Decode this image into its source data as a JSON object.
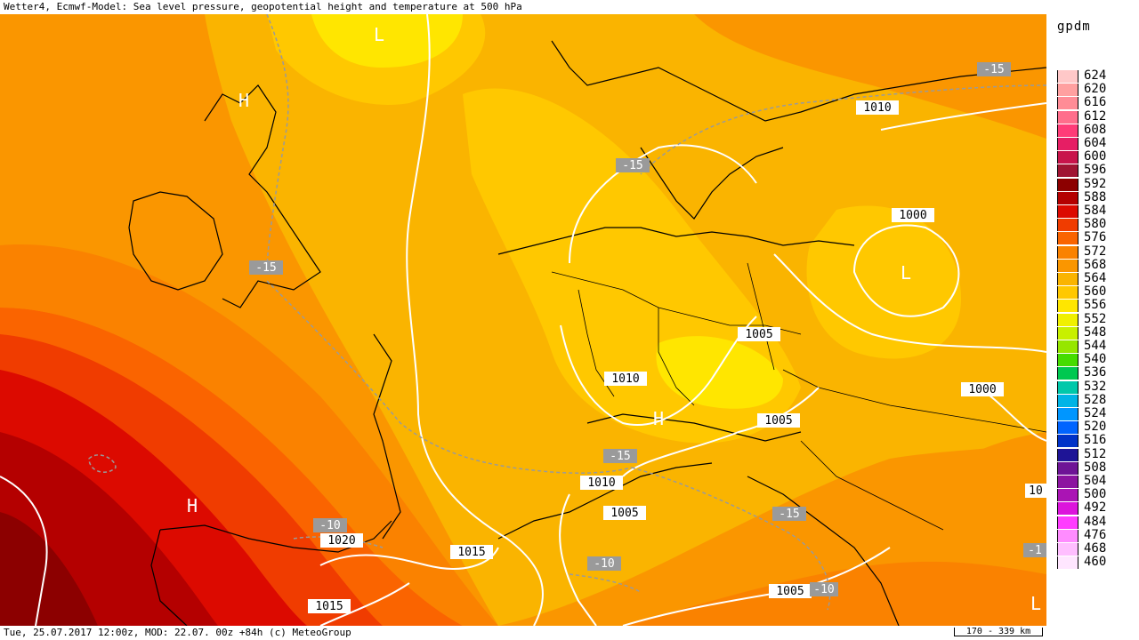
{
  "title": "Wetter4, Ecmwf-Model: Sea level pressure, geopotential height and temperature at 500 hPa",
  "footer": "Tue, 25.07.2017 12:00z, MOD: 22.07. 00z +84h (c) MeteoGroup",
  "scale_label": "170 - 339 km",
  "legend": {
    "unit": "gpdm",
    "items": [
      {
        "label": "624",
        "color": "#ffc8c8"
      },
      {
        "label": "620",
        "color": "#ffa0a0"
      },
      {
        "label": "616",
        "color": "#ff8c96"
      },
      {
        "label": "612",
        "color": "#ff6e8c"
      },
      {
        "label": "608",
        "color": "#ff3c78"
      },
      {
        "label": "604",
        "color": "#e61e64"
      },
      {
        "label": "600",
        "color": "#c8144b"
      },
      {
        "label": "596",
        "color": "#a01432"
      },
      {
        "label": "592",
        "color": "#8c0000"
      },
      {
        "label": "588",
        "color": "#b40000"
      },
      {
        "label": "584",
        "color": "#dc0a00"
      },
      {
        "label": "580",
        "color": "#f03c00"
      },
      {
        "label": "576",
        "color": "#fa6400"
      },
      {
        "label": "572",
        "color": "#fa8200"
      },
      {
        "label": "568",
        "color": "#fa9600"
      },
      {
        "label": "564",
        "color": "#fab400"
      },
      {
        "label": "560",
        "color": "#ffc800"
      },
      {
        "label": "556",
        "color": "#ffe600"
      },
      {
        "label": "552",
        "color": "#f0f000"
      },
      {
        "label": "548",
        "color": "#c8f000"
      },
      {
        "label": "544",
        "color": "#96e600"
      },
      {
        "label": "540",
        "color": "#46dc00"
      },
      {
        "label": "536",
        "color": "#00c850"
      },
      {
        "label": "532",
        "color": "#00c8aa"
      },
      {
        "label": "528",
        "color": "#00b4e6"
      },
      {
        "label": "524",
        "color": "#0096ff"
      },
      {
        "label": "520",
        "color": "#0064ff"
      },
      {
        "label": "516",
        "color": "#0032c8"
      },
      {
        "label": "512",
        "color": "#1e1496"
      },
      {
        "label": "508",
        "color": "#6e1496"
      },
      {
        "label": "504",
        "color": "#8c14a0"
      },
      {
        "label": "500",
        "color": "#aa14b4"
      },
      {
        "label": "492",
        "color": "#dc14dc"
      },
      {
        "label": "484",
        "color": "#ff3cff"
      },
      {
        "label": "476",
        "color": "#ff8cff"
      },
      {
        "label": "468",
        "color": "#ffbeff"
      },
      {
        "label": "460",
        "color": "#ffe6ff"
      }
    ]
  },
  "map": {
    "pressure_labels": [
      "1010",
      "1000",
      "1005",
      "1010",
      "1000",
      "1005",
      "1010",
      "1005",
      "1015",
      "1020",
      "1015",
      "1005",
      "10"
    ],
    "temperature_labels": [
      "-15",
      "-15",
      "-15",
      "-15",
      "-10",
      "-10",
      "-15",
      "-15",
      "-10",
      "-1"
    ],
    "center_markers": [
      "L",
      "H",
      "L",
      "H",
      "H",
      "L"
    ]
  }
}
